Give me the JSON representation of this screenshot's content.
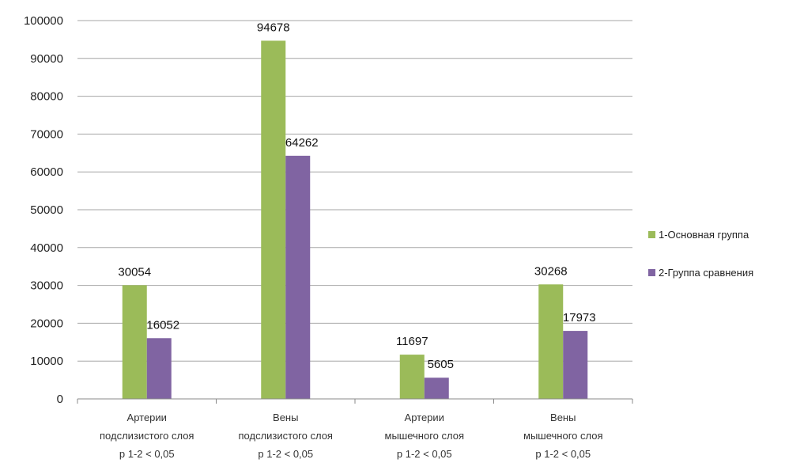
{
  "chart_data": {
    "type": "bar",
    "categories": [
      [
        "Артерии",
        "подслизистого слоя",
        "р 1-2 < 0,05"
      ],
      [
        "Вены",
        "подслизистого слоя",
        "р 1-2 < 0,05"
      ],
      [
        "Артерии",
        "мышечного слоя",
        "р 1-2 < 0,05"
      ],
      [
        "Вены",
        "мышечного слоя",
        "р 1-2 < 0,05"
      ]
    ],
    "series": [
      {
        "name": "1-Основная группа",
        "values": [
          30054,
          94678,
          11697,
          30268
        ],
        "color": "#9bbb59"
      },
      {
        "name": "2-Группа сравнения",
        "values": [
          16052,
          64262,
          5605,
          17973
        ],
        "color": "#8064a2"
      }
    ],
    "y_ticks": [
      "0",
      "10000",
      "20000",
      "30000",
      "40000",
      "50000",
      "60000",
      "70000",
      "80000",
      "90000",
      "100000"
    ],
    "ylim": [
      0,
      100000
    ],
    "grid": true,
    "legend_position": "right"
  }
}
